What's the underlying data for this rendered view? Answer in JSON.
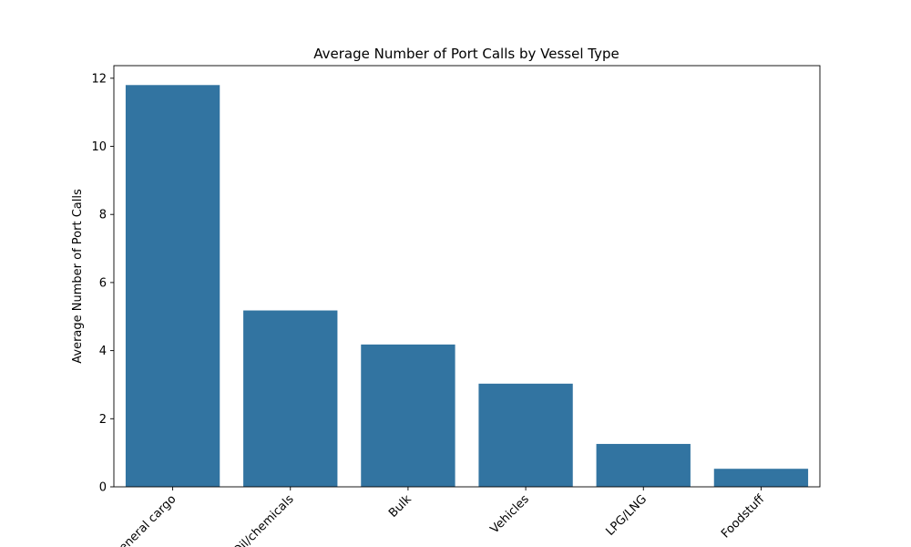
{
  "chart_data": {
    "type": "bar",
    "title": "Average Number of Port Calls by Vessel Type",
    "xlabel": "",
    "ylabel": "Average Number of Port Calls",
    "categories": [
      "General cargo",
      "Oil/chemicals",
      "Bulk",
      "Vehicles",
      "LPG/LNG",
      "Foodstuff"
    ],
    "values": [
      11.8,
      5.18,
      4.18,
      3.03,
      1.26,
      0.53
    ],
    "ylim": [
      0,
      12.37
    ],
    "yticks": [
      0,
      2,
      4,
      6,
      8,
      10,
      12
    ],
    "grid": false,
    "bar_color": "#3274a1",
    "legend": "none"
  }
}
